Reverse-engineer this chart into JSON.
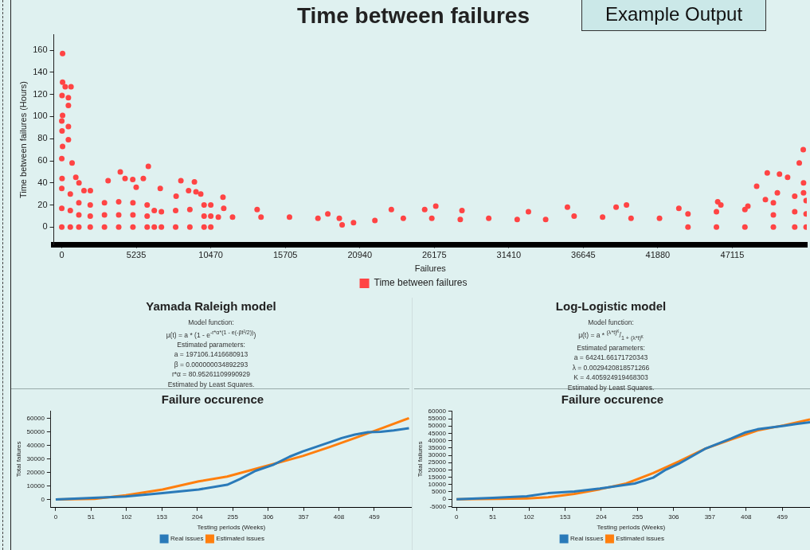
{
  "chart_data": [
    {
      "type": "scatter",
      "title": "Time between failures",
      "xlabel": "Failures",
      "ylabel": "Time between failures (Hours)",
      "annotations": [
        "Example Output"
      ],
      "series": [
        {
          "name": "Time between failures",
          "color": "#ff4444",
          "x": [
            56,
            56,
            242,
            650,
            20,
            465,
            465,
            56,
            0,
            465,
            20,
            465,
            56,
            725,
            0,
            20,
            986,
            1210,
            4112,
            6082,
            5730,
            3255,
            4447,
            4987,
            6920,
            8370,
            9320,
            8911,
            9430,
            8035,
            9765,
            11327,
            11380,
            23157,
            13727,
            18693,
            1562,
            2009,
            5228,
            52100,
            51820,
            49570,
            50430,
            51000,
            48825,
            50280,
            49440,
            46090,
            46310,
            48210,
            39680,
            38950,
            35530,
            26280,
            25500,
            28120,
            32790,
            43360,
            52120,
            52120,
            0,
            600,
            1200,
            2000,
            3000,
            4000,
            5000,
            6000,
            6500,
            7000,
            8000,
            9000,
            10000,
            10470,
            11000,
            12000,
            14000,
            16000,
            18000,
            19500,
            19700,
            20500,
            22000,
            24000,
            26000,
            28000,
            30000,
            32000,
            34000,
            36000,
            38000,
            40000,
            42000,
            44000,
            46000,
            48000,
            50000,
            51500,
            52300,
            0,
            600,
            1200,
            2000,
            3000,
            4000,
            5000,
            6000,
            10000,
            10470,
            50000,
            51500,
            52300,
            0,
            600,
            1200,
            2000,
            3000,
            4000,
            5000,
            6000,
            6500,
            7000,
            8000,
            9000,
            10000,
            10470,
            44000,
            46000,
            48000,
            50000,
            51500,
            52300
          ],
          "values": [
            157,
            131,
            127,
            127,
            119,
            117,
            110,
            101,
            96,
            91,
            87,
            79,
            73,
            58,
            62,
            44,
            45,
            40,
            50,
            55,
            44,
            42,
            44,
            43,
            35,
            42,
            41,
            33,
            32,
            28,
            30,
            27,
            17,
            16,
            16,
            12,
            33,
            33,
            36,
            70,
            58,
            49,
            48,
            45,
            37,
            31,
            25,
            23,
            20,
            19,
            20,
            18,
            18,
            19,
            16,
            15,
            14,
            17,
            40,
            31,
            35,
            30,
            22,
            20,
            22,
            23,
            22,
            20,
            15,
            14,
            15,
            16,
            20,
            20,
            9,
            9,
            9,
            9,
            8,
            8,
            2,
            4,
            6,
            8,
            8,
            7,
            8,
            7,
            7,
            10,
            9,
            8,
            8,
            12,
            14,
            16,
            22,
            28,
            24,
            17,
            15,
            11,
            10,
            11,
            11,
            11,
            10,
            10,
            10,
            11,
            14,
            12,
            0,
            0,
            0,
            0,
            0,
            0,
            0,
            0,
            0,
            0,
            0,
            0,
            0,
            0,
            0,
            0,
            0,
            0,
            0,
            0
          ]
        }
      ],
      "xlim": [
        -560,
        52350
      ],
      "xticks": [
        0,
        5235,
        10470,
        15705,
        20940,
        26175,
        31410,
        36645,
        41880,
        47115
      ],
      "ylim": [
        -16,
        174
      ],
      "yticks": [
        0,
        20,
        40,
        60,
        80,
        100,
        120,
        140,
        160
      ],
      "grid": false,
      "legend": "bottom",
      "marker": "circle"
    },
    {
      "type": "other",
      "title": "Yamada Raleigh model",
      "annotations": [
        "Model function:",
        "μ(t) = a * (1 - e$^{-r*α*(1 - e(-βt²/2))}$)",
        "Estimated parameters:",
        "a = 197106.1416680913",
        "β = 0.000000034892293",
        "r*α = 80.95261109990929",
        "Estimated by Least Squares."
      ]
    },
    {
      "type": "other",
      "title": "Log-Logistic model",
      "annotations": [
        "Model function:",
        "μ(t) = a * $^{(λ*t)ᴷ}$/$_{1 + (λ*t)ᴷ}$",
        "Estimated parameters:",
        "a = 64241.66171720343",
        "λ = 0.0029420818571266",
        "K = 4.405924919468303",
        "Estimated by Least Squares."
      ]
    },
    {
      "type": "line",
      "title": "Failure occurence",
      "xlabel": "Testing periods (Weeks)",
      "ylabel": "Total failures",
      "series": [
        {
          "name": "Real issues",
          "color": "#2a7ab9",
          "x": [
            0,
            101,
            154,
            206,
            247,
            266,
            288,
            313,
            337,
            356,
            393,
            412,
            431,
            450,
            468,
            487,
            509
          ],
          "values": [
            0,
            2200,
            4800,
            7400,
            10900,
            15200,
            21200,
            25500,
            31600,
            35500,
            41900,
            45300,
            47900,
            49700,
            50000,
            51000,
            52600
          ]
        },
        {
          "name": "Estimated issues",
          "color": "#ff7f0e",
          "x": [
            0,
            56,
            101,
            154,
            206,
            247,
            303,
            356,
            393,
            431,
            468,
            509
          ],
          "values": [
            0,
            500,
            3100,
            7400,
            13400,
            16900,
            24700,
            32100,
            38400,
            45300,
            52200,
            60000
          ]
        }
      ],
      "xlim": [
        -7,
        513
      ],
      "xticks": [
        0,
        51,
        102,
        153,
        204,
        255,
        306,
        357,
        408,
        459
      ],
      "ylim": [
        -6000,
        65500
      ],
      "yticks": [
        0,
        10000,
        20000,
        30000,
        40000,
        50000,
        60000
      ],
      "grid": false,
      "legend": "bottom",
      "marker": "none"
    },
    {
      "type": "line",
      "title": "Failure occurence",
      "xlabel": "Testing periods (Weeks)",
      "ylabel": "Total failures",
      "series": [
        {
          "name": "Real issues",
          "color": "#2a7ab9",
          "x": [
            0,
            51,
            99,
            129,
            166,
            202,
            239,
            251,
            277,
            295,
            313,
            350,
            387,
            406,
            424,
            461,
            480,
            498
          ],
          "values": [
            0,
            900,
            2000,
            4100,
            5200,
            7300,
            9900,
            10700,
            14700,
            20200,
            24200,
            34400,
            41500,
            45500,
            47800,
            50200,
            51500,
            52600
          ]
        },
        {
          "name": "Estimated issues",
          "color": "#ff7f0e",
          "x": [
            0,
            55,
            99,
            129,
            166,
            202,
            239,
            277,
            313,
            350,
            387,
            424,
            461,
            498
          ],
          "values": [
            0,
            200,
            500,
            1300,
            3600,
            6800,
            10700,
            17800,
            25700,
            34400,
            40800,
            47000,
            50500,
            54600
          ]
        }
      ],
      "xlim": [
        -6,
        498
      ],
      "xticks": [
        0,
        51,
        102,
        153,
        204,
        255,
        306,
        357,
        408,
        459
      ],
      "ylim": [
        -5800,
        60500
      ],
      "yticks": [
        -5000,
        0,
        5000,
        10000,
        15000,
        20000,
        25000,
        30000,
        35000,
        40000,
        45000,
        50000,
        55000,
        60000
      ],
      "grid": false,
      "legend": "bottom",
      "marker": "none"
    }
  ]
}
